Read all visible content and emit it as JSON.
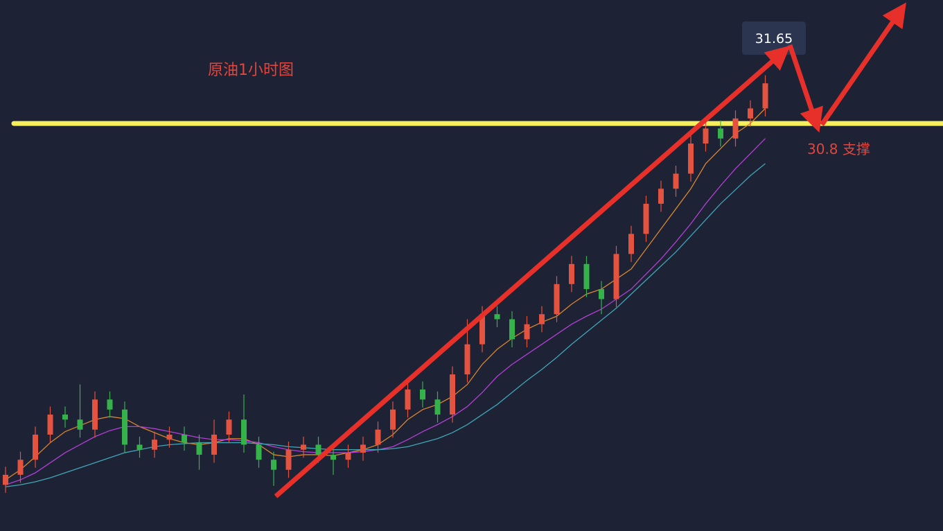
{
  "chart_data": {
    "type": "candlestick",
    "title": "原油1小时图",
    "categories": [
      null,
      null,
      null,
      null,
      null,
      null,
      null,
      null,
      null,
      null,
      null,
      null,
      null,
      null,
      null,
      null,
      null,
      null,
      null,
      null,
      null,
      null,
      null,
      null,
      null,
      null,
      null,
      null,
      null,
      null,
      null,
      null,
      null,
      null,
      null,
      null,
      null,
      null,
      null,
      null,
      null,
      null,
      null,
      null,
      null,
      null,
      null,
      null,
      null,
      null,
      null,
      null
    ],
    "open": [
      27.2,
      27.3,
      27.45,
      27.7,
      27.9,
      27.85,
      27.75,
      28.05,
      27.95,
      27.6,
      27.55,
      27.65,
      27.7,
      27.62,
      27.5,
      27.7,
      27.85,
      27.6,
      27.45,
      27.35,
      27.55,
      27.6,
      27.5,
      27.45,
      27.52,
      27.6,
      27.75,
      27.95,
      28.15,
      28.05,
      27.9,
      28.3,
      28.6,
      28.9,
      28.85,
      28.65,
      28.8,
      28.9,
      29.2,
      29.4,
      29.15,
      29.05,
      29.5,
      29.7,
      30.0,
      30.15,
      30.3,
      30.6,
      30.75,
      30.65,
      30.85,
      30.95
    ],
    "high": [
      27.38,
      27.53,
      27.78,
      27.98,
      27.98,
      28.2,
      28.13,
      28.13,
      28.03,
      27.68,
      27.73,
      27.78,
      27.78,
      27.7,
      27.85,
      27.93,
      28.1,
      27.68,
      27.53,
      27.63,
      27.68,
      27.68,
      27.58,
      27.6,
      27.68,
      27.83,
      28.03,
      28.23,
      28.23,
      28.13,
      28.38,
      28.85,
      28.98,
      28.98,
      28.93,
      28.88,
      28.98,
      29.28,
      29.48,
      29.48,
      29.23,
      29.58,
      29.78,
      30.08,
      30.23,
      30.38,
      30.68,
      30.83,
      30.83,
      30.93,
      31.03,
      31.28
    ],
    "low": [
      27.12,
      27.22,
      27.37,
      27.62,
      27.77,
      27.67,
      27.67,
      27.87,
      27.52,
      27.47,
      27.47,
      27.57,
      27.54,
      27.35,
      27.42,
      27.62,
      27.52,
      27.37,
      27.19,
      27.27,
      27.47,
      27.42,
      27.3,
      27.37,
      27.44,
      27.52,
      27.67,
      27.87,
      27.97,
      27.82,
      27.82,
      28.22,
      28.52,
      28.77,
      28.57,
      28.57,
      28.72,
      28.82,
      29.12,
      29.07,
      28.9,
      28.97,
      29.42,
      29.62,
      29.92,
      30.07,
      30.22,
      30.52,
      30.57,
      30.57,
      30.77,
      30.87
    ],
    "close": [
      27.3,
      27.45,
      27.7,
      27.9,
      27.85,
      27.75,
      28.05,
      27.95,
      27.6,
      27.55,
      27.65,
      27.7,
      27.62,
      27.5,
      27.7,
      27.85,
      27.6,
      27.45,
      27.35,
      27.55,
      27.6,
      27.5,
      27.45,
      27.52,
      27.6,
      27.75,
      27.95,
      28.15,
      28.05,
      27.9,
      28.3,
      28.6,
      28.9,
      28.85,
      28.65,
      28.8,
      28.9,
      29.2,
      29.4,
      29.15,
      29.05,
      29.5,
      29.7,
      30.0,
      30.15,
      30.3,
      30.6,
      30.75,
      30.65,
      30.85,
      30.95,
      31.2
    ],
    "up_color": "#e4533f",
    "down_color": "#35b24a",
    "lines": [
      {
        "color": "#d9862e",
        "values": [
          27.25,
          27.35,
          27.48,
          27.62,
          27.73,
          27.79,
          27.85,
          27.88,
          27.86,
          27.78,
          27.72,
          27.66,
          27.62,
          27.6,
          27.62,
          27.66,
          27.66,
          27.6,
          27.5,
          27.48,
          27.5,
          27.5,
          27.49,
          27.52,
          27.55,
          27.6,
          27.7,
          27.85,
          27.95,
          28.0,
          28.08,
          28.2,
          28.4,
          28.55,
          28.66,
          28.75,
          28.82,
          28.88,
          29.0,
          29.1,
          29.15,
          29.25,
          29.35,
          29.55,
          29.75,
          29.95,
          30.15,
          30.4,
          30.55,
          30.7,
          30.8,
          30.95
        ]
      },
      {
        "color": "#b43fd6",
        "values": [
          27.2,
          27.25,
          27.32,
          27.42,
          27.52,
          27.6,
          27.68,
          27.74,
          27.78,
          27.78,
          27.76,
          27.73,
          27.7,
          27.67,
          27.65,
          27.65,
          27.64,
          27.62,
          27.58,
          27.55,
          27.53,
          27.52,
          27.52,
          27.52,
          27.53,
          27.55,
          27.58,
          27.65,
          27.73,
          27.8,
          27.88,
          27.98,
          28.12,
          28.28,
          28.4,
          28.5,
          28.6,
          28.7,
          28.8,
          28.88,
          28.95,
          29.05,
          29.15,
          29.3,
          29.45,
          29.62,
          29.8,
          30.0,
          30.18,
          30.35,
          30.5,
          30.65
        ]
      },
      {
        "color": "#3fa6b8",
        "values": [
          27.18,
          27.2,
          27.23,
          27.27,
          27.32,
          27.37,
          27.42,
          27.47,
          27.52,
          27.55,
          27.58,
          27.6,
          27.61,
          27.62,
          27.62,
          27.62,
          27.62,
          27.61,
          27.6,
          27.58,
          27.57,
          27.56,
          27.55,
          27.55,
          27.55,
          27.55,
          27.56,
          27.58,
          27.62,
          27.66,
          27.72,
          27.8,
          27.9,
          28.0,
          28.12,
          28.24,
          28.35,
          28.47,
          28.6,
          28.72,
          28.84,
          28.96,
          29.1,
          29.24,
          29.38,
          29.52,
          29.68,
          29.84,
          30.0,
          30.14,
          30.28,
          30.4
        ]
      }
    ],
    "ylim": [
      26.74,
      32.03
    ],
    "annotations": [
      {
        "value": 31.65,
        "label": "31.65"
      },
      {
        "value": 30.8,
        "label": "30.8 支撑"
      }
    ],
    "support_color": "#f5f05a"
  }
}
